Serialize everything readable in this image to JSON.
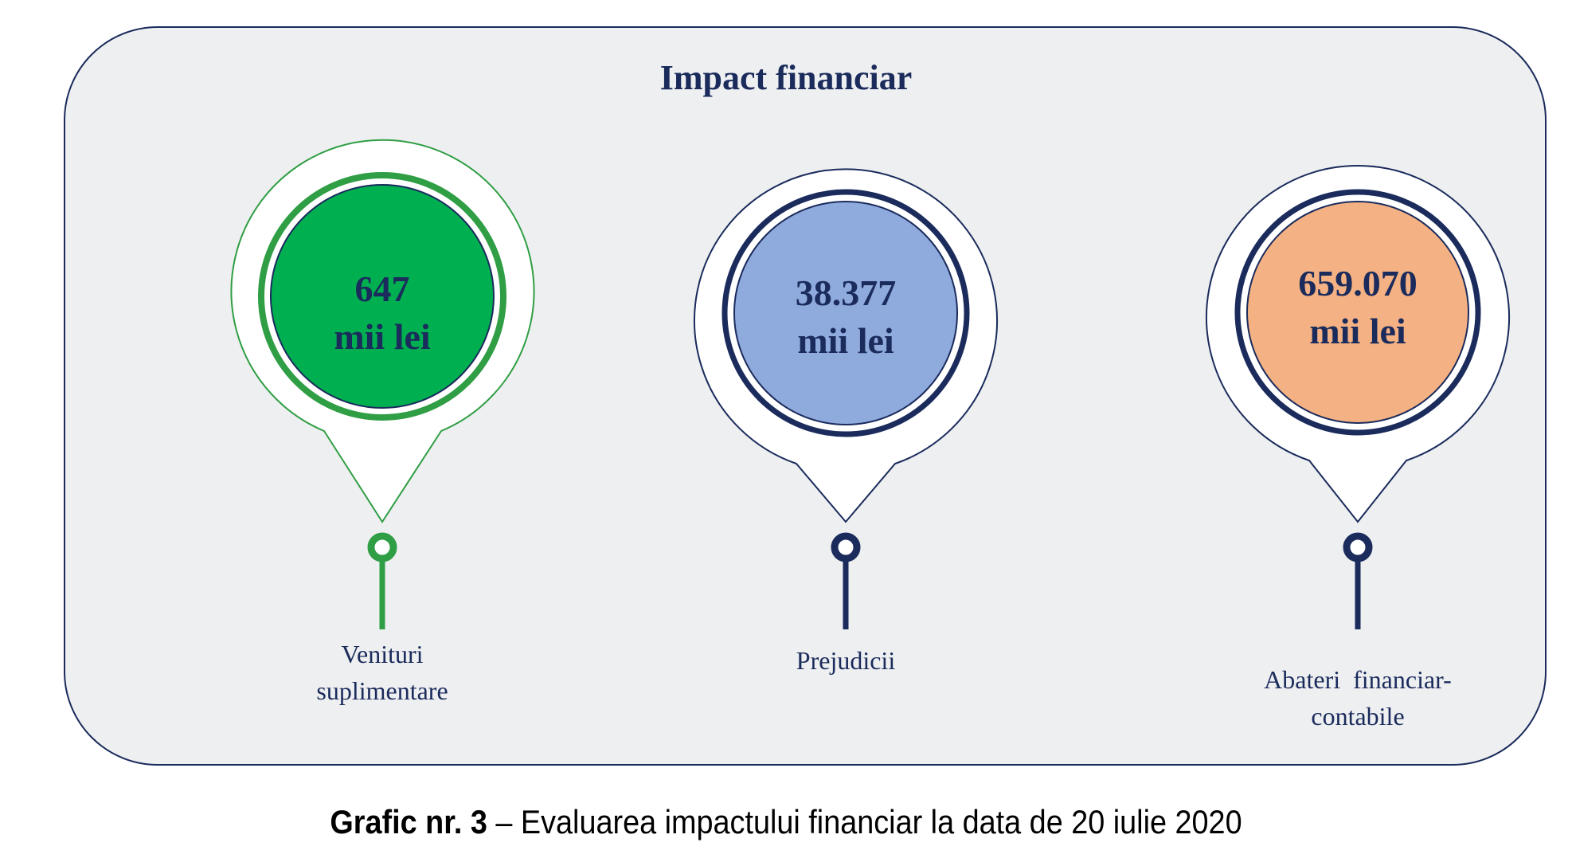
{
  "title": "Impact financiar",
  "items": [
    {
      "value": "647",
      "unit": "mii lei",
      "label_line1": "Venituri",
      "label_line2": "suplimentare",
      "fill": "#00b050",
      "ring": "#2f9e44",
      "outline": "#2f9e44"
    },
    {
      "value": "38.377",
      "unit": "mii lei",
      "label_line1": "Prejudicii",
      "label_line2": "",
      "fill": "#8faadc",
      "ring": "#1a2b5c",
      "outline": "#1a2b5c"
    },
    {
      "value": "659.070",
      "unit": "mii lei",
      "label_line1": "Abateri  financiar-",
      "label_line2": "contabile",
      "fill": "#f4b183",
      "ring": "#1a2b5c",
      "outline": "#1a2b5c"
    }
  ],
  "caption": {
    "bold": "Grafic nr. 3",
    "text": " – Evaluarea impactului financiar la data de 20 iulie 2020"
  }
}
